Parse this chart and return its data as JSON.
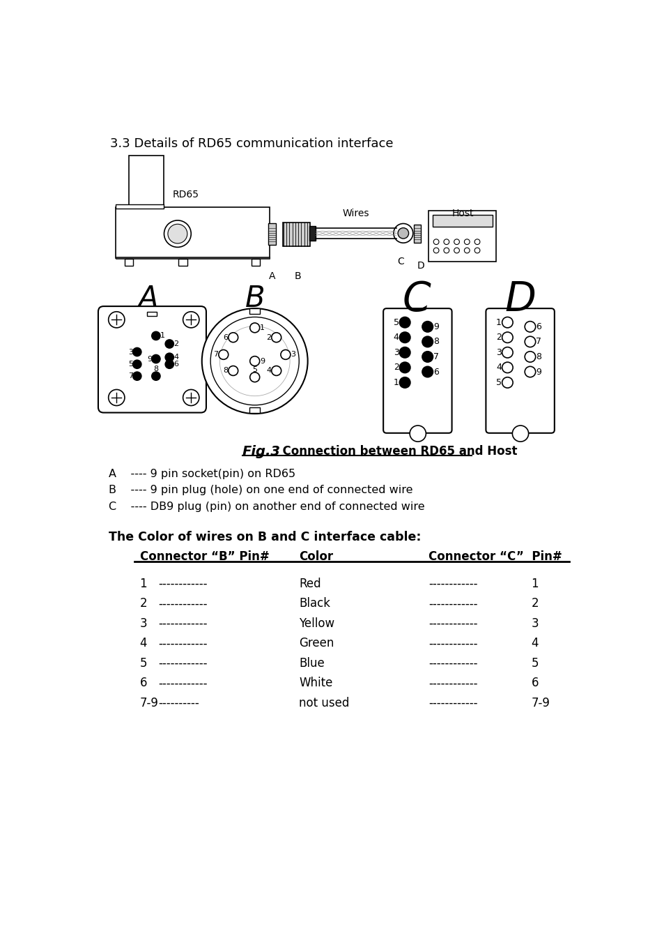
{
  "title": "3.3 Details of RD65 communication interface",
  "fig_caption_bold": "Fig.3",
  "fig_caption_rest": "  Connection between RD65 and Host",
  "legend_A": "A    ---- 9 pin socket(pin) on RD65",
  "legend_B": "B    ---- 9 pin plug (hole) on one end of connected wire",
  "legend_C": "C    ---- DB9 plug (pin) on another end of connected wire",
  "table_header_title": "The Color of wires on B and C interface cable:",
  "table_col1_header": "Connector “B” Pin#",
  "table_col2_header": "Color",
  "table_col3_header": "Connector “C”  Pin#",
  "table_rows": [
    [
      "1",
      "------------",
      "Red",
      "------------",
      "1"
    ],
    [
      "2",
      "------------",
      "Black",
      "------------",
      "2"
    ],
    [
      "3",
      "------------",
      "Yellow",
      "------------",
      "3"
    ],
    [
      "4",
      "------------",
      "Green",
      "------------",
      "4"
    ],
    [
      "5",
      "------------",
      "Blue",
      "------------",
      "5"
    ],
    [
      "6",
      "------------",
      "White",
      "------------",
      "6"
    ],
    [
      "7-9",
      "----------",
      "not used",
      "------------",
      "7-9"
    ]
  ],
  "label_RD65": "RD65",
  "label_Wires": "Wires",
  "label_Host": "Host",
  "label_A": "A",
  "label_B": "B",
  "label_C": "C",
  "label_D": "D",
  "big_A": "A",
  "big_B": "B",
  "big_C": "C",
  "big_D": "D",
  "bg_color": "#ffffff",
  "text_color": "#000000"
}
